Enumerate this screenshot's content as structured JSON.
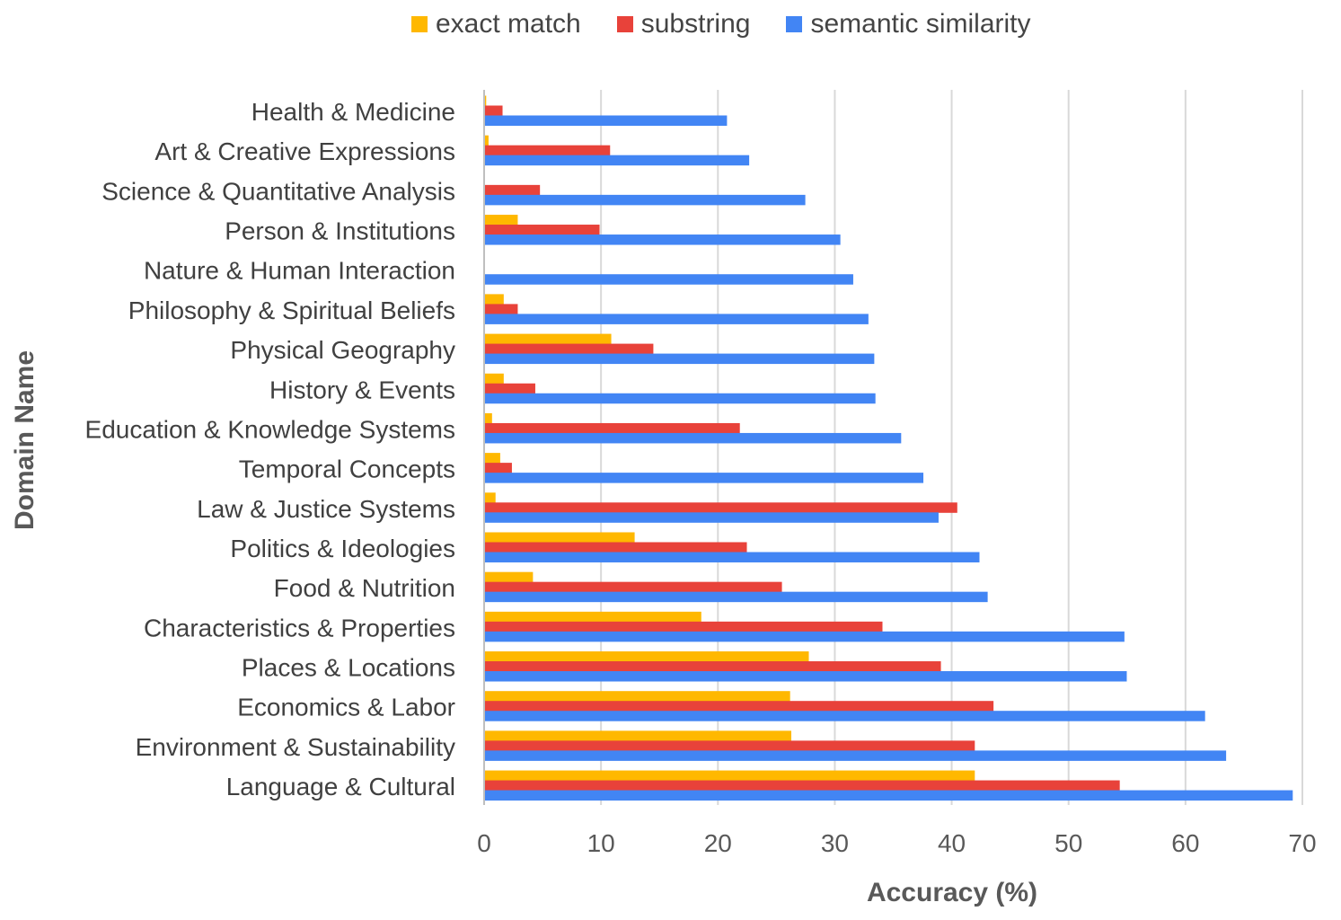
{
  "chart_data": {
    "type": "bar",
    "orientation": "horizontal",
    "xlabel": "Accuracy (%)",
    "ylabel": "Domain Name",
    "xlim": [
      0,
      70
    ],
    "xticks": [
      0,
      10,
      20,
      30,
      40,
      50,
      60,
      70
    ],
    "grid": true,
    "legend_position": "top",
    "categories": [
      "Health & Medicine",
      "Art & Creative Expressions",
      "Science & Quantitative Analysis",
      "Person & Institutions",
      "Nature & Human Interaction",
      "Philosophy & Spiritual Beliefs",
      "Physical Geography",
      "History & Events",
      "Education & Knowledge Systems",
      "Temporal Concepts",
      "Law & Justice Systems",
      "Politics & Ideologies",
      "Food & Nutrition",
      "Characteristics & Properties",
      "Places & Locations",
      "Economics & Labor",
      "Environment & Sustainability",
      "Language & Cultural"
    ],
    "series": [
      {
        "name": "exact match",
        "color": "#FFB800",
        "values": [
          0.1,
          0.3,
          0,
          2.8,
          0,
          1.6,
          10.8,
          1.6,
          0.6,
          1.3,
          0.9,
          12.8,
          4.1,
          18.5,
          27.7,
          26.1,
          26.2,
          41.9
        ]
      },
      {
        "name": "substring",
        "color": "#E8423A",
        "values": [
          1.5,
          10.7,
          4.7,
          9.8,
          0,
          2.8,
          14.4,
          4.3,
          21.8,
          2.3,
          40.4,
          22.4,
          25.4,
          34.0,
          39.0,
          43.5,
          41.9,
          54.3
        ]
      },
      {
        "name": "semantic similarity",
        "color": "#4285F4",
        "values": [
          20.7,
          22.6,
          27.4,
          30.4,
          31.5,
          32.8,
          33.3,
          33.4,
          35.6,
          37.5,
          38.8,
          42.3,
          43.0,
          54.7,
          54.9,
          61.6,
          63.4,
          69.1
        ]
      }
    ]
  }
}
